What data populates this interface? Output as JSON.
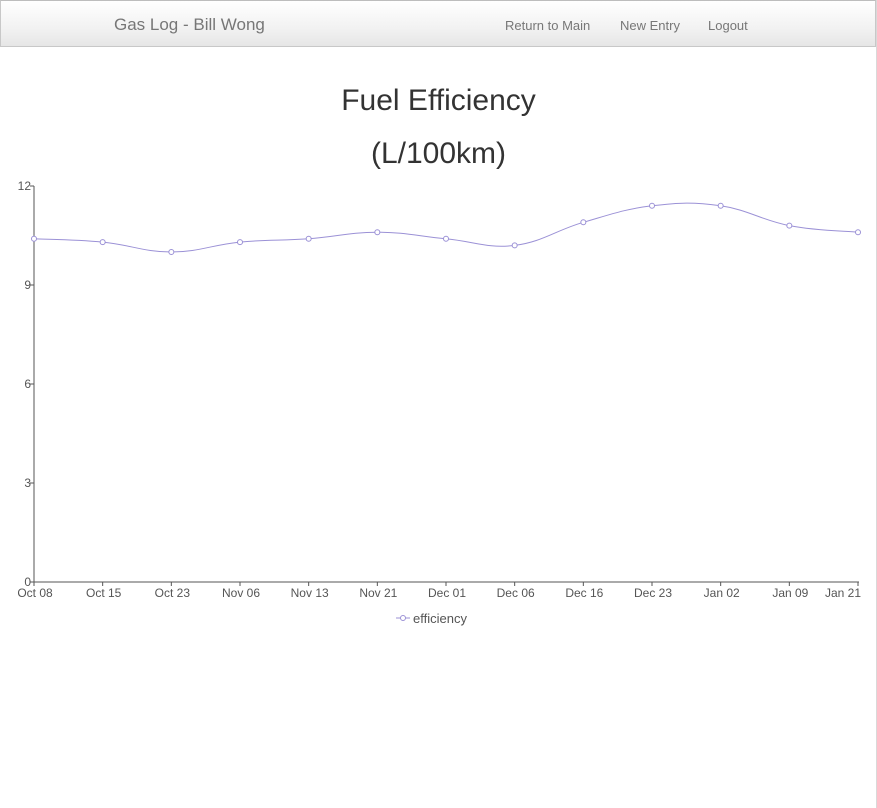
{
  "navbar": {
    "brand": "Gas Log - Bill Wong",
    "links": [
      {
        "label": "Return to Main"
      },
      {
        "label": "New Entry"
      },
      {
        "label": "Logout"
      }
    ]
  },
  "colors": {
    "series": "#9b91d6",
    "axis": "#555555",
    "navbar_text": "#777777"
  },
  "chart_data": {
    "type": "line",
    "title_line1": "Fuel Efficiency",
    "title_line2": "(L/100km)",
    "xlabel": "",
    "ylabel": "",
    "categories": [
      "Oct 08",
      "Oct 15",
      "Oct 23",
      "Nov 06",
      "Nov 13",
      "Nov 21",
      "Dec 01",
      "Dec 06",
      "Dec 16",
      "Dec 23",
      "Jan 02",
      "Jan 09",
      "Jan 21"
    ],
    "series": [
      {
        "name": "efficiency",
        "values": [
          10.4,
          10.3,
          10.0,
          10.3,
          10.4,
          10.6,
          10.4,
          10.2,
          10.9,
          11.4,
          11.4,
          10.8,
          10.6
        ]
      }
    ],
    "ylim": [
      0,
      12
    ],
    "yticks": [
      0,
      3,
      6,
      9,
      12
    ],
    "grid": false,
    "legend": "bottom-center",
    "smooth": true,
    "markers": "hollow-circle"
  }
}
